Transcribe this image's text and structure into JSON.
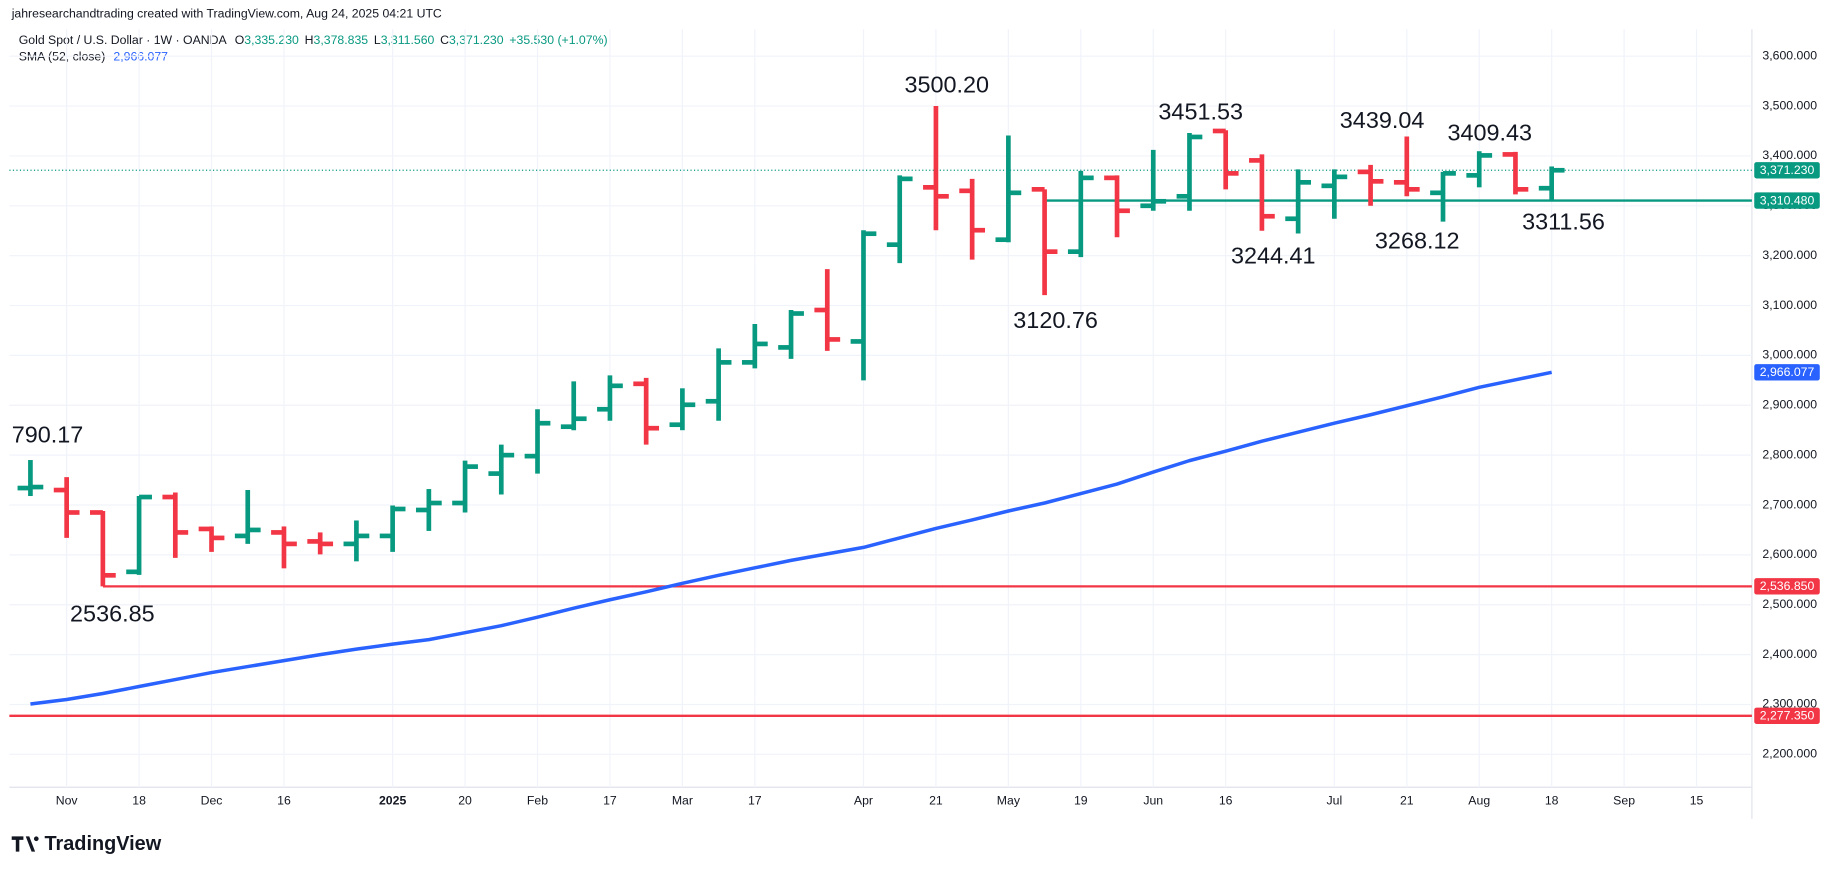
{
  "chart_data": {
    "type": "ohlc",
    "attribution": "jahresearchandtrading created with TradingView.com, Aug 24, 2025 04:21 UTC",
    "title": "Gold Spot / U.S. Dollar · 1W · OANDA",
    "legend_ohlc": [
      {
        "key": "O",
        "value": "3,335.230"
      },
      {
        "key": "H",
        "value": "3,378.835"
      },
      {
        "key": "L",
        "value": "3,311.560"
      },
      {
        "key": "C",
        "value": "3,371.230"
      }
    ],
    "change": "+35.530 (+1.07%)",
    "logo": "TradingView",
    "up_color": "#089981",
    "down_color": "#f23645",
    "categories": [
      null,
      "Nov",
      null,
      "18",
      null,
      "Dec",
      null,
      "16",
      null,
      null,
      "2025",
      null,
      "20",
      null,
      "Feb",
      null,
      "17",
      null,
      "Mar",
      null,
      "17",
      null,
      null,
      "Apr",
      null,
      "21",
      null,
      "May",
      null,
      "19",
      null,
      "Jun",
      null,
      "16",
      null,
      null,
      "Jul",
      null,
      "21",
      null,
      "Aug",
      null,
      "18",
      null,
      "Sep",
      null,
      "15"
    ],
    "open": [
      2734,
      2730,
      2685,
      2566,
      2716,
      2652,
      2638,
      2645,
      2627,
      2622,
      2638,
      2690,
      2704,
      2763,
      2798,
      2857,
      2892,
      2943,
      2861,
      2908,
      2986,
      3016,
      3091,
      3028,
      3222,
      3337,
      3330,
      3232,
      3333,
      3208,
      3356,
      3300,
      3319,
      3450,
      3391,
      3274,
      3340,
      3368,
      3347,
      3326,
      3361,
      3403,
      3335.23,
      null,
      null,
      null,
      null
    ],
    "high": [
      2790.17,
      2756,
      2688,
      2718,
      2725,
      2657,
      2730,
      2657,
      2645,
      2669,
      2699,
      2732,
      2789,
      2821,
      2892,
      2948,
      2960,
      2955,
      2934,
      3014,
      3063,
      3091,
      3173,
      3251,
      3361,
      3500.2,
      3354,
      3441,
      3333,
      3370,
      3361,
      3412,
      3446,
      3451.53,
      3403,
      3373,
      3373,
      3382,
      3439.04,
      3368,
      3409.43,
      3408,
      3378.835,
      null,
      null,
      null,
      null
    ],
    "low": [
      2718,
      2634,
      2536.85,
      2560,
      2594,
      2606,
      2622,
      2573,
      2601,
      2587,
      2606,
      2648,
      2685,
      2721,
      2763,
      2850,
      2869,
      2821,
      2850,
      2869,
      2974,
      2993,
      3009,
      2950,
      3185,
      3251,
      3192,
      3227,
      3120.76,
      3197,
      3237,
      3290,
      3290,
      3333,
      3250,
      3244.41,
      3274,
      3300,
      3319,
      3268.12,
      3337,
      3323,
      3311.56,
      null,
      null,
      null,
      null
    ],
    "close": [
      2736,
      2685,
      2559,
      2716,
      2645,
      2634,
      2650,
      2622,
      2622,
      2638,
      2692,
      2704,
      2777,
      2800,
      2864,
      2873,
      2939,
      2854,
      2901,
      2986,
      3023,
      3084,
      3032,
      3244,
      3354,
      3319,
      3251,
      3326,
      3208,
      3356,
      3290,
      3309,
      3438,
      3365,
      3279,
      3347,
      3358,
      3349,
      3333,
      3365,
      3401,
      3333,
      3371.23,
      null,
      null,
      null,
      null
    ],
    "sma": {
      "name": "SMA (52, close)",
      "value_label": "2,966.077",
      "color": "#2962ff",
      "value": 2966.077,
      "values": [
        2301,
        2310,
        2322,
        2336,
        2350,
        2364,
        2376,
        2388,
        2400,
        2411,
        2421,
        2430,
        2444,
        2458,
        2475,
        2493,
        2510,
        2526,
        2543,
        2559,
        2574,
        2589,
        2602,
        2615,
        2634,
        2653,
        2670,
        2688,
        2704,
        2723,
        2742,
        2766,
        2789,
        2808,
        2828,
        2846,
        2864,
        2881,
        2899,
        2917,
        2936,
        2951,
        2966.077,
        null,
        null,
        null,
        null
      ]
    },
    "last_price": {
      "value": 3371.23,
      "label": "3,371.230",
      "color": "#089981"
    },
    "levels": [
      {
        "value": 3310.48,
        "label": "3,310.480",
        "color": "#089981"
      },
      {
        "value": 2536.85,
        "label": "2,536.850",
        "color": "#f23645"
      },
      {
        "value": 2277.35,
        "label": "2,277.350",
        "color": "#f23645"
      }
    ],
    "annotations": [
      "790.17",
      "2536.85",
      "3500.20",
      "3120.76",
      "3451.53",
      "3244.41",
      "3439.04",
      "3268.12",
      "3409.43",
      "3311.56"
    ],
    "ylim": [
      2134,
      3654
    ],
    "yticks": [
      {
        "value": 2200,
        "label": "2,200.000"
      },
      {
        "value": 2300,
        "label": "2,300.000"
      },
      {
        "value": 2400,
        "label": "2,400.000"
      },
      {
        "value": 2500,
        "label": "2,500.000"
      },
      {
        "value": 2600,
        "label": "2,600.000"
      },
      {
        "value": 2700,
        "label": "2,700.000"
      },
      {
        "value": 2800,
        "label": "2,800.000"
      },
      {
        "value": 2900,
        "label": "2,900.000"
      },
      {
        "value": 3000,
        "label": "3,000.000"
      },
      {
        "value": 3100,
        "label": "3,100.000"
      },
      {
        "value": 3200,
        "label": "3,200.000"
      },
      {
        "value": 3300,
        "label": "3,300.000"
      },
      {
        "value": 3400,
        "label": "3,400.000"
      },
      {
        "value": 3500,
        "label": "3,500.000"
      },
      {
        "value": 3600,
        "label": "3,600.000"
      }
    ],
    "grid": true
  }
}
